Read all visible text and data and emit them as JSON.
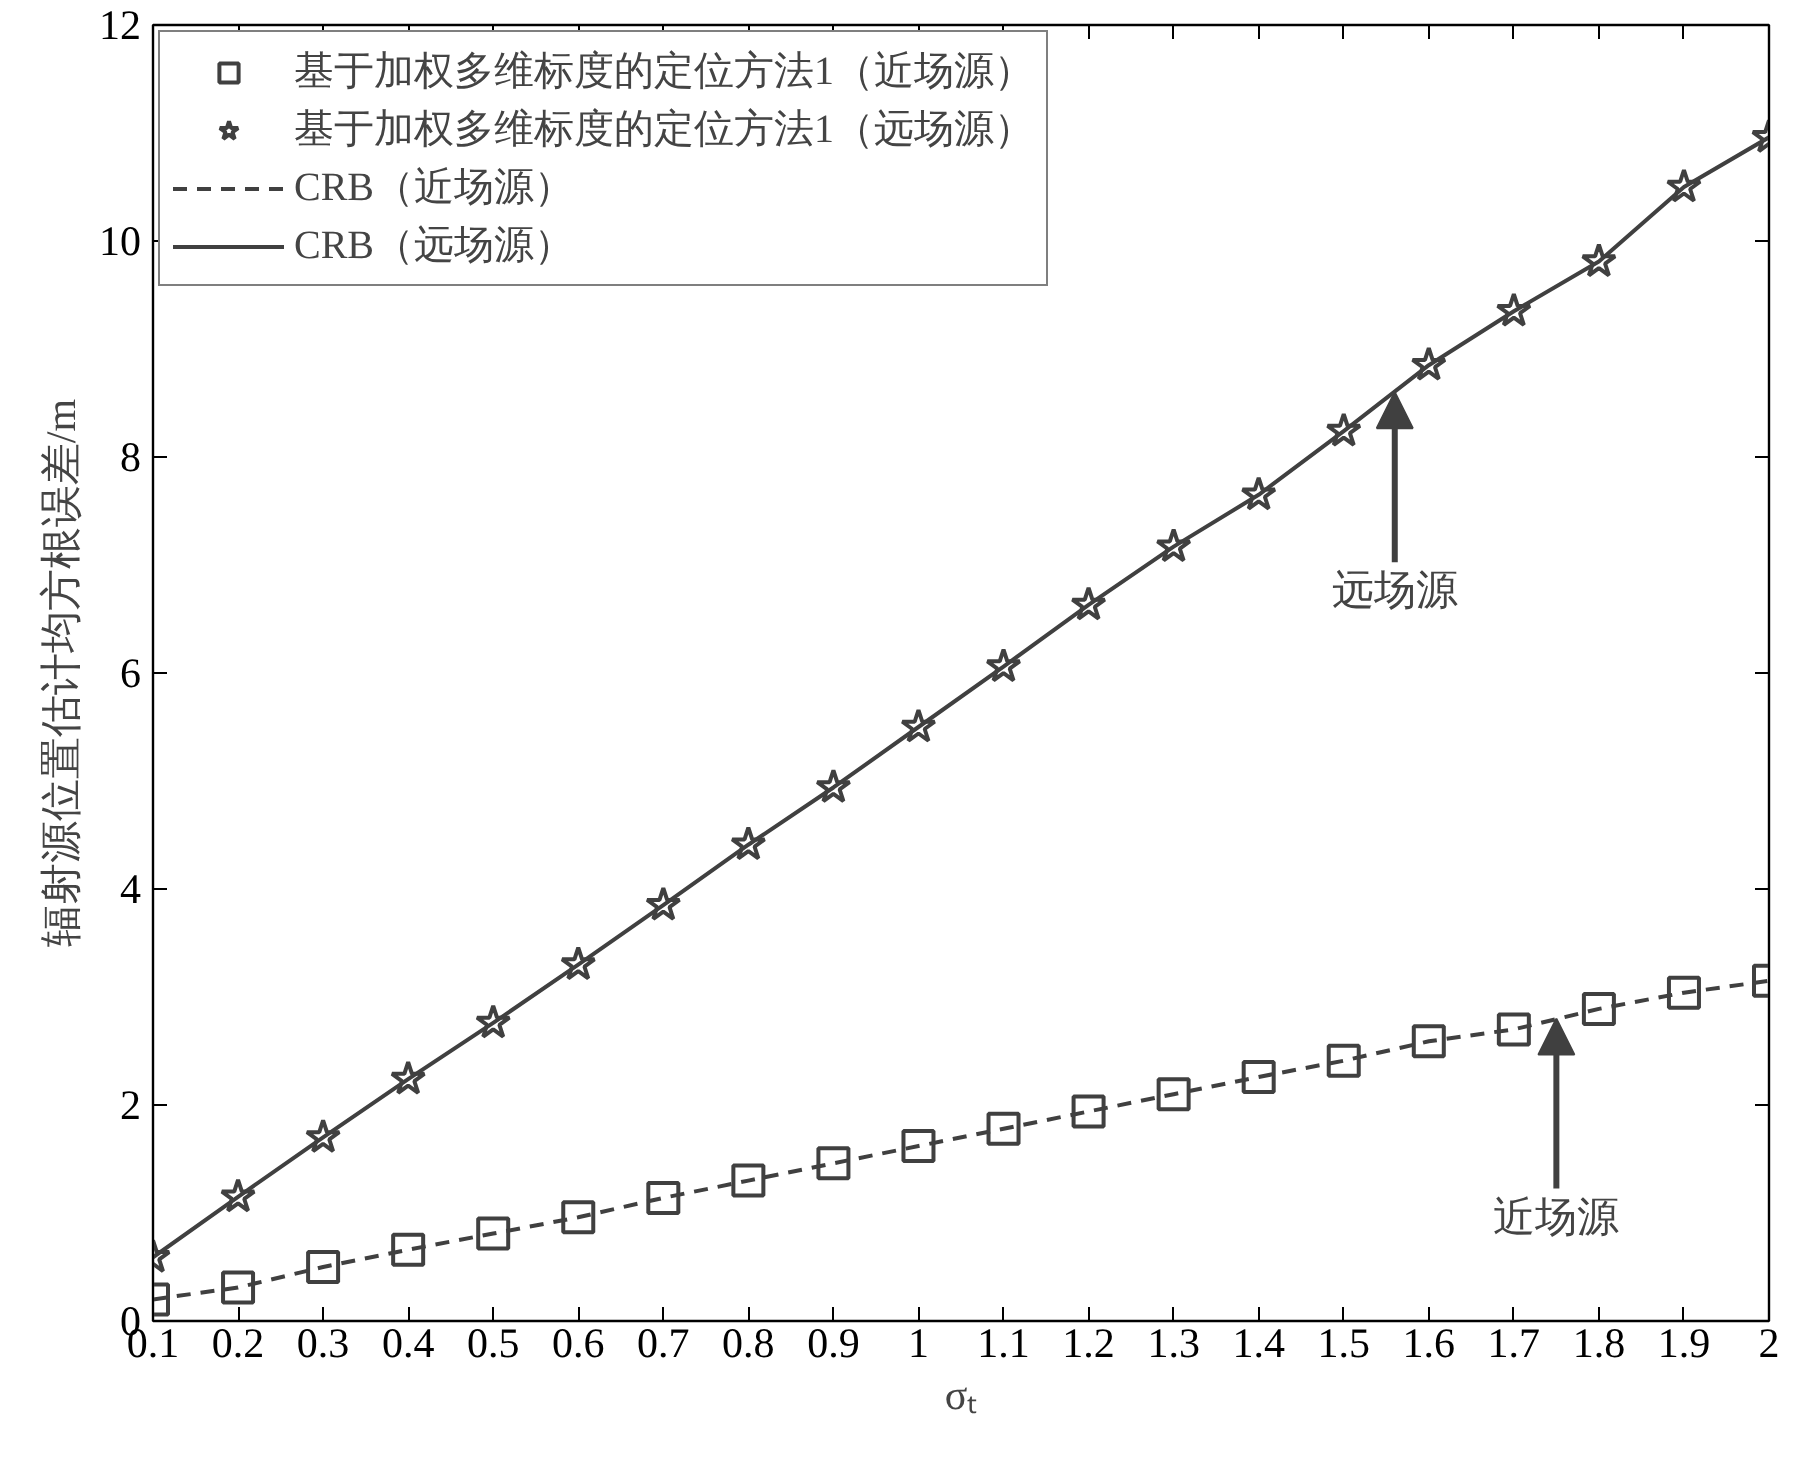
{
  "chart_data": {
    "type": "line",
    "xlabel": "σₜ",
    "ylabel": "辐射源位置估计均方根误差/m",
    "x": [
      0.1,
      0.2,
      0.3,
      0.4,
      0.5,
      0.6,
      0.7,
      0.8,
      0.9,
      1,
      1.1,
      1.2,
      1.3,
      1.4,
      1.5,
      1.6,
      1.7,
      1.8,
      1.9,
      2
    ],
    "xlim": [
      0.1,
      2
    ],
    "xticks": [
      0.1,
      0.2,
      0.3,
      0.4,
      0.5,
      0.6,
      0.7,
      0.8,
      0.9,
      1,
      1.1,
      1.2,
      1.3,
      1.4,
      1.5,
      1.6,
      1.7,
      1.8,
      1.9,
      2
    ],
    "ylim": [
      0,
      12
    ],
    "yticks": [
      0,
      2,
      4,
      6,
      8,
      10,
      12
    ],
    "grid": false,
    "legend": "top left",
    "series": [
      {
        "name": "基于加权多维标度的定位方法1（近场源）",
        "type": "scatter",
        "marker": "square",
        "color": "#404040",
        "values": [
          0.2,
          0.31,
          0.5,
          0.66,
          0.81,
          0.96,
          1.14,
          1.3,
          1.46,
          1.62,
          1.78,
          1.94,
          2.1,
          2.26,
          2.41,
          2.59,
          2.7,
          2.89,
          3.04,
          3.15
        ]
      },
      {
        "name": "基于加权多维标度的定位方法1（远场源）",
        "type": "scatter",
        "marker": "star",
        "color": "#404040",
        "values": [
          0.59,
          1.15,
          1.7,
          2.24,
          2.76,
          3.3,
          3.85,
          4.41,
          4.94,
          5.5,
          6.06,
          6.63,
          7.17,
          7.65,
          8.24,
          8.85,
          9.35,
          9.81,
          10.5,
          10.96
        ]
      },
      {
        "name": "CRB（近场源）",
        "line_style": "dashed",
        "color": "#404040",
        "values": [
          0.2,
          0.31,
          0.5,
          0.66,
          0.81,
          0.96,
          1.14,
          1.3,
          1.46,
          1.62,
          1.78,
          1.94,
          2.1,
          2.26,
          2.41,
          2.59,
          2.7,
          2.89,
          3.04,
          3.15
        ]
      },
      {
        "name": "CRB（远场源）",
        "line_style": "solid",
        "color": "#404040",
        "values": [
          0.59,
          1.15,
          1.7,
          2.24,
          2.76,
          3.3,
          3.85,
          4.41,
          4.94,
          5.5,
          6.06,
          6.63,
          7.17,
          7.65,
          8.24,
          8.85,
          9.35,
          9.81,
          10.5,
          10.96
        ]
      }
    ],
    "annotations": [
      {
        "text": "远场源",
        "x": 1.56,
        "y": 8.6
      },
      {
        "text": "近场源",
        "x": 1.75,
        "y": 2.8
      }
    ]
  }
}
